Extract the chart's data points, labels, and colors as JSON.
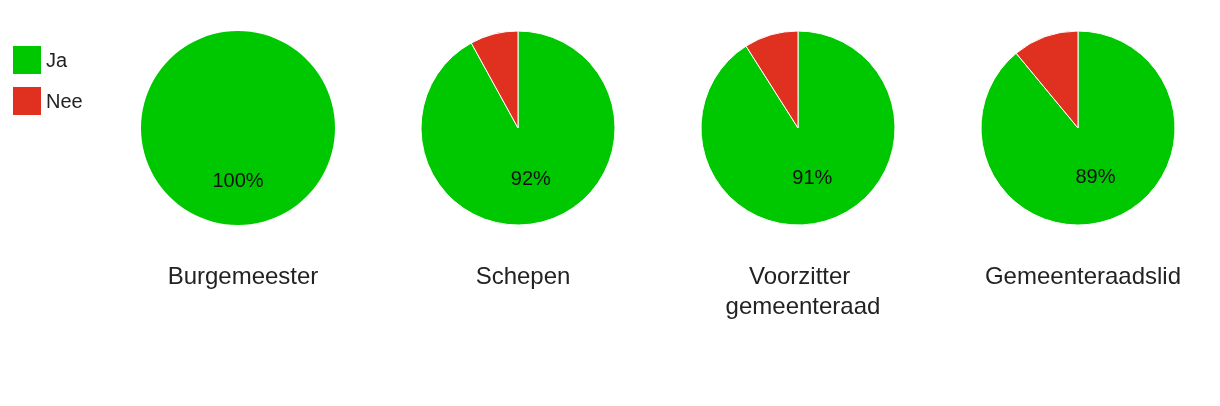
{
  "chart_data": {
    "type": "pie",
    "categories": [
      "Ja",
      "Nee"
    ],
    "colors": [
      "#00c800",
      "#e03020"
    ],
    "legend": "top left",
    "series": [
      {
        "name": "Burgemeester",
        "values": [
          100,
          0
        ],
        "value_labels": [
          "100%",
          null
        ]
      },
      {
        "name": "Schepen",
        "values": [
          92,
          8
        ],
        "value_labels": [
          "92%",
          null
        ]
      },
      {
        "name": "Voorzitter gemeenteraad",
        "values": [
          91,
          9
        ],
        "value_labels": [
          "91%",
          null
        ]
      },
      {
        "name": "Gemeenteraadslid",
        "values": [
          89,
          11
        ],
        "value_labels": [
          "89%",
          null
        ]
      }
    ]
  }
}
